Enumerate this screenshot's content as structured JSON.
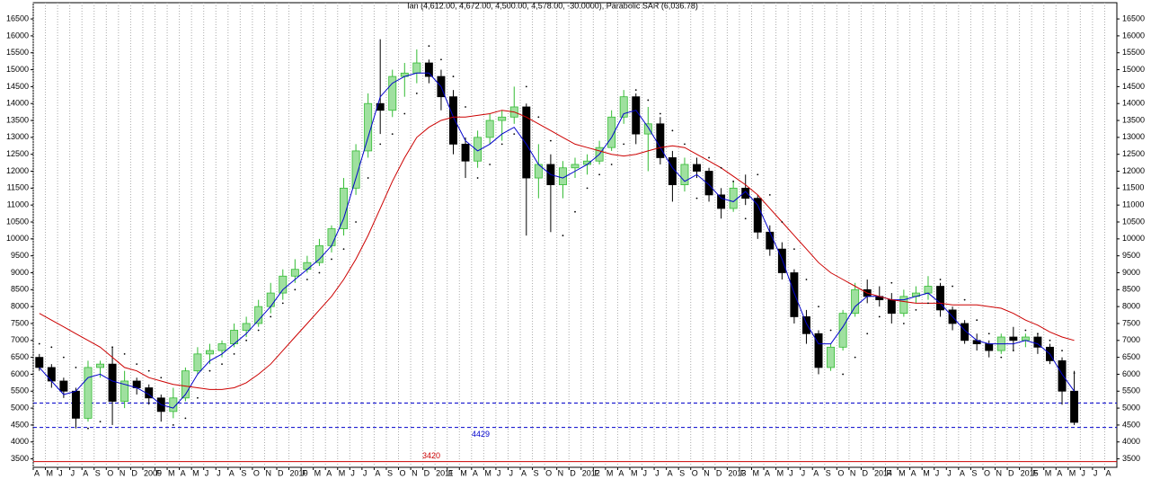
{
  "chart_data": {
    "type": "candlestick",
    "title": "Ian (4,612.00, 4,672.00, 4,500.00, 4,578.00, -30.0000), Parabolic SAR (6,036.78)",
    "categories": [
      "A",
      "M",
      "J",
      "J",
      "A",
      "S",
      "O",
      "N",
      "D",
      "2009",
      "F",
      "M",
      "A",
      "M",
      "J",
      "J",
      "A",
      "S",
      "O",
      "N",
      "D",
      "2010",
      "F",
      "M",
      "A",
      "M",
      "J",
      "J",
      "A",
      "S",
      "O",
      "N",
      "D",
      "2011",
      "F",
      "M",
      "A",
      "M",
      "J",
      "J",
      "A",
      "S",
      "O",
      "N",
      "D",
      "2012",
      "F",
      "M",
      "A",
      "M",
      "J",
      "J",
      "A",
      "S",
      "O",
      "N",
      "D",
      "2013",
      "F",
      "M",
      "A",
      "M",
      "J",
      "J",
      "A",
      "S",
      "O",
      "N",
      "D",
      "2014",
      "F",
      "M",
      "A",
      "M",
      "J",
      "J",
      "A",
      "S",
      "O",
      "N",
      "D",
      "2015",
      "F",
      "M",
      "A",
      "M",
      "J",
      "J",
      "A"
    ],
    "open": [
      6500,
      6200,
      5800,
      5500,
      4700,
      6200,
      6300,
      5200,
      5800,
      5600,
      5300,
      4900,
      5300,
      6100,
      6600,
      6700,
      6900,
      7300,
      7500,
      8000,
      8400,
      8900,
      9100,
      9300,
      9800,
      10300,
      11500,
      12600,
      14000,
      13800,
      14800,
      14900,
      15200,
      14800,
      14200,
      12800,
      12300,
      13000,
      13500,
      13600,
      13900,
      11800,
      12200,
      11600,
      12100,
      12200,
      12300,
      12700,
      13600,
      14200,
      13100,
      13400,
      12400,
      11600,
      12200,
      12000,
      11300,
      10900,
      11500,
      11200,
      10200,
      9700,
      9000,
      7700,
      7200,
      6200,
      6800,
      7800,
      8500,
      8300,
      8200,
      7800,
      8300,
      8400,
      8600,
      7900,
      7500,
      7000,
      6900,
      6700,
      7100,
      7000,
      7100,
      6800,
      6400,
      5500,
      null,
      null,
      null
    ],
    "high": [
      6600,
      6300,
      5900,
      5600,
      6400,
      6400,
      6800,
      6100,
      5900,
      5700,
      5400,
      5600,
      6200,
      6800,
      6900,
      7000,
      7500,
      7700,
      8200,
      8700,
      9100,
      9400,
      9500,
      10000,
      10400,
      11800,
      12800,
      14300,
      15900,
      15000,
      15200,
      15600,
      15300,
      15000,
      14400,
      13000,
      13200,
      13700,
      13800,
      14500,
      14000,
      12800,
      12500,
      12300,
      12400,
      12500,
      12900,
      13800,
      14400,
      14300,
      13900,
      13600,
      12600,
      12400,
      12400,
      12100,
      11500,
      11700,
      11900,
      11300,
      10400,
      9900,
      9100,
      7900,
      7300,
      6900,
      7900,
      8700,
      8800,
      8600,
      8400,
      8500,
      8600,
      8900,
      8700,
      8000,
      7600,
      7200,
      7000,
      7200,
      7400,
      7200,
      7200,
      6900,
      6500,
      6100,
      null,
      null,
      null
    ],
    "low": [
      6100,
      5600,
      5300,
      4400,
      4600,
      5900,
      4500,
      5000,
      5400,
      5100,
      4600,
      4700,
      5200,
      6000,
      6300,
      6500,
      6800,
      7100,
      7400,
      7800,
      8200,
      8700,
      9000,
      9200,
      9600,
      10100,
      11300,
      12400,
      13100,
      13600,
      14200,
      14600,
      14600,
      13800,
      12500,
      11800,
      12100,
      12800,
      12900,
      13400,
      10100,
      11200,
      10200,
      11200,
      11800,
      11900,
      12200,
      12600,
      13400,
      12800,
      12000,
      12200,
      11100,
      11400,
      11800,
      11100,
      10600,
      10800,
      11000,
      10000,
      9500,
      8800,
      7500,
      6900,
      6000,
      6100,
      6700,
      7700,
      8100,
      8000,
      7500,
      7700,
      8100,
      8200,
      7700,
      7300,
      6900,
      6700,
      6500,
      6600,
      6700,
      6800,
      6600,
      6300,
      5100,
      4500,
      null,
      null,
      null
    ],
    "close": [
      6200,
      5800,
      5500,
      4700,
      6200,
      6300,
      5200,
      5800,
      5600,
      5300,
      4900,
      5300,
      6100,
      6600,
      6700,
      6900,
      7300,
      7500,
      8000,
      8400,
      8900,
      9100,
      9300,
      9800,
      10300,
      11500,
      12600,
      14000,
      13800,
      14800,
      14900,
      15200,
      14800,
      14200,
      12800,
      12300,
      13000,
      13500,
      13600,
      13900,
      11800,
      12200,
      11600,
      12100,
      12200,
      12300,
      12700,
      13600,
      14200,
      13100,
      13400,
      12400,
      11600,
      12200,
      12000,
      11300,
      10900,
      11500,
      11200,
      10200,
      9700,
      9000,
      7700,
      7200,
      6200,
      6800,
      7800,
      8500,
      8300,
      8200,
      7800,
      8300,
      8400,
      8600,
      7900,
      7500,
      7000,
      6900,
      6700,
      7100,
      7000,
      7100,
      6800,
      6400,
      5500,
      4578,
      null,
      null,
      null
    ],
    "up_color": "#33bb33",
    "down_color": "#000000",
    "lines": [
      {
        "color": "#0000cc",
        "values": [
          6200,
          5800,
          5400,
          5500,
          5900,
          6000,
          5800,
          5700,
          5600,
          5400,
          5100,
          5000,
          5400,
          6000,
          6400,
          6600,
          6900,
          7200,
          7600,
          8000,
          8500,
          8800,
          9100,
          9400,
          9800,
          10600,
          11800,
          13000,
          14200,
          14600,
          14800,
          14900,
          14900,
          14500,
          13600,
          12900,
          12600,
          12800,
          13100,
          13300,
          12800,
          12200,
          11900,
          11800,
          12000,
          12200,
          12500,
          13000,
          13700,
          13800,
          13300,
          12700,
          12100,
          11700,
          11900,
          11600,
          11200,
          11100,
          11400,
          11000,
          10200,
          9400,
          8400,
          7500,
          6900,
          6900,
          7400,
          8000,
          8300,
          8300,
          8200,
          8200,
          8300,
          8400,
          8100,
          7700,
          7300,
          7000,
          6900,
          6900,
          6900,
          7000,
          6900,
          6600,
          6000,
          5500,
          null,
          null,
          null
        ]
      },
      {
        "color": "#cc0000",
        "values": [
          7800,
          7600,
          7400,
          7200,
          7000,
          6800,
          6500,
          6200,
          6100,
          5900,
          5800,
          5700,
          5650,
          5600,
          5550,
          5550,
          5600,
          5750,
          6000,
          6300,
          6700,
          7100,
          7500,
          7900,
          8300,
          8800,
          9400,
          10100,
          10900,
          11700,
          12400,
          13000,
          13300,
          13500,
          13600,
          13600,
          13650,
          13700,
          13800,
          13750,
          13600,
          13400,
          13200,
          13000,
          12800,
          12700,
          12600,
          12500,
          12450,
          12500,
          12600,
          12700,
          12750,
          12700,
          12500,
          12300,
          12100,
          11850,
          11600,
          11300,
          10900,
          10500,
          10100,
          9700,
          9300,
          9000,
          8800,
          8600,
          8400,
          8300,
          8200,
          8150,
          8100,
          8100,
          8100,
          8050,
          8050,
          8050,
          8000,
          7950,
          7800,
          7600,
          7450,
          7250,
          7100,
          7000,
          null,
          null,
          null
        ]
      }
    ],
    "sar": {
      "color": "#000000",
      "values": [
        6900,
        6800,
        6500,
        6200,
        4400,
        4600,
        6800,
        6600,
        6300,
        6100,
        5900,
        4500,
        4700,
        5300,
        6100,
        6300,
        6600,
        7000,
        7300,
        7700,
        8100,
        8500,
        8800,
        9000,
        9400,
        9700,
        10500,
        11800,
        12800,
        13100,
        13700,
        14300,
        15700,
        15300,
        14800,
        13900,
        11800,
        12200,
        12800,
        13100,
        14500,
        13600,
        12900,
        10100,
        10800,
        11500,
        11900,
        12200,
        12800,
        14400,
        14100,
        13700,
        13200,
        12800,
        11200,
        12400,
        12100,
        11700,
        10600,
        11900,
        11300,
        10500,
        9700,
        8800,
        8000,
        7300,
        6000,
        6500,
        7200,
        7700,
        8700,
        7500,
        7900,
        8100,
        8800,
        8600,
        8200,
        7600,
        7200,
        6500,
        6700,
        7300,
        7200,
        7000,
        6700,
        6036.78,
        null,
        null,
        null
      ]
    },
    "hlines": [
      {
        "value": 5150,
        "color": "#0000cc",
        "dashed": true
      },
      {
        "value": 4429,
        "label": "4429",
        "color": "#0000cc",
        "dashed": true
      },
      {
        "value": 3420,
        "label": "3420",
        "color": "#cc0000",
        "dashed": false
      }
    ],
    "ylim": [
      3250,
      16980
    ],
    "yticks": [
      3500,
      4000,
      4500,
      5000,
      5500,
      6000,
      6500,
      7000,
      7500,
      8000,
      8500,
      9000,
      9500,
      10000,
      10500,
      11000,
      11500,
      12000,
      12500,
      13000,
      13500,
      14000,
      14500,
      15000,
      15500,
      16000,
      16500
    ],
    "grid": true
  }
}
